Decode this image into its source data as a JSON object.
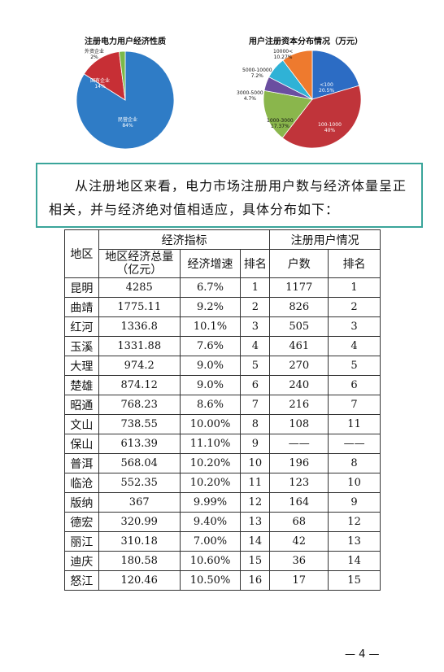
{
  "charts": {
    "left": {
      "title": "注册电力用户经济性质",
      "slices": [
        {
          "label": "民营企业",
          "value_label": "84%",
          "value": 84,
          "color": "#2f7cc6"
        },
        {
          "label": "国有企业",
          "value_label": "14%",
          "value": 14,
          "color": "#c72f35"
        },
        {
          "label": "外资企业",
          "value_label": "2%",
          "value": 2,
          "color": "#7bb94a"
        }
      ]
    },
    "right": {
      "title": "用户注册资本分布情况（万元）",
      "slices": [
        {
          "label": "<100",
          "value_label": "20.5%",
          "value": 20.5,
          "color": "#2c6cc4"
        },
        {
          "label": "100-1000",
          "value_label": "40%",
          "value": 40,
          "color": "#c0343a"
        },
        {
          "label": "1000-3000",
          "value_label": "17.37%",
          "value": 17.37,
          "color": "#8ab64c"
        },
        {
          "label": "3000-5000",
          "value_label": "4.7%",
          "value": 4.7,
          "color": "#6a4ea0"
        },
        {
          "label": "5000-10000",
          "value_label": "7.2%",
          "value": 7.2,
          "color": "#2fb2d6"
        },
        {
          "label": "10000<",
          "value_label": "10.27%",
          "value": 10.27,
          "color": "#ee7a2e"
        }
      ]
    }
  },
  "callout": {
    "text": "从注册地区来看，电力市场注册用户数与经济体量呈正相关，并与经济绝对值相适应，具体分布如下："
  },
  "table": {
    "header": {
      "region": "地区",
      "econ_group": "经济指标",
      "user_group": "注册用户情况",
      "gdp": "地区经济总量（亿元）",
      "growth": "经济增速",
      "econ_rank": "排名",
      "users": "户数",
      "user_rank": "排名"
    },
    "rows": [
      {
        "region": "昆明",
        "gdp": "4285",
        "growth": "6.7%",
        "econ_rank": "1",
        "users": "1177",
        "user_rank": "1"
      },
      {
        "region": "曲靖",
        "gdp": "1775.11",
        "growth": "9.2%",
        "econ_rank": "2",
        "users": "826",
        "user_rank": "2"
      },
      {
        "region": "红河",
        "gdp": "1336.8",
        "growth": "10.1%",
        "econ_rank": "3",
        "users": "505",
        "user_rank": "3"
      },
      {
        "region": "玉溪",
        "gdp": "1331.88",
        "growth": "7.6%",
        "econ_rank": "4",
        "users": "461",
        "user_rank": "4"
      },
      {
        "region": "大理",
        "gdp": "974.2",
        "growth": "9.0%",
        "econ_rank": "5",
        "users": "270",
        "user_rank": "5"
      },
      {
        "region": "楚雄",
        "gdp": "874.12",
        "growth": "9.0%",
        "econ_rank": "6",
        "users": "240",
        "user_rank": "6"
      },
      {
        "region": "昭通",
        "gdp": "768.23",
        "growth": "8.6%",
        "econ_rank": "7",
        "users": "216",
        "user_rank": "7"
      },
      {
        "region": "文山",
        "gdp": "738.55",
        "growth": "10.00%",
        "econ_rank": "8",
        "users": "108",
        "user_rank": "11"
      },
      {
        "region": "保山",
        "gdp": "613.39",
        "growth": "11.10%",
        "econ_rank": "9",
        "users": "——",
        "user_rank": "——"
      },
      {
        "region": "普洱",
        "gdp": "568.04",
        "growth": "10.20%",
        "econ_rank": "10",
        "users": "196",
        "user_rank": "8"
      },
      {
        "region": "临沧",
        "gdp": "552.35",
        "growth": "10.20%",
        "econ_rank": "11",
        "users": "123",
        "user_rank": "10"
      },
      {
        "region": "版纳",
        "gdp": "367",
        "growth": "9.99%",
        "econ_rank": "12",
        "users": "164",
        "user_rank": "9"
      },
      {
        "region": "德宏",
        "gdp": "320.99",
        "growth": "9.40%",
        "econ_rank": "13",
        "users": "68",
        "user_rank": "12"
      },
      {
        "region": "丽江",
        "gdp": "310.18",
        "growth": "7.00%",
        "econ_rank": "14",
        "users": "42",
        "user_rank": "13"
      },
      {
        "region": "迪庆",
        "gdp": "180.58",
        "growth": "10.60%",
        "econ_rank": "15",
        "users": "36",
        "user_rank": "14"
      },
      {
        "region": "怒江",
        "gdp": "120.46",
        "growth": "10.50%",
        "econ_rank": "16",
        "users": "17",
        "user_rank": "15"
      }
    ]
  },
  "footer": {
    "page": "— 4 —"
  }
}
